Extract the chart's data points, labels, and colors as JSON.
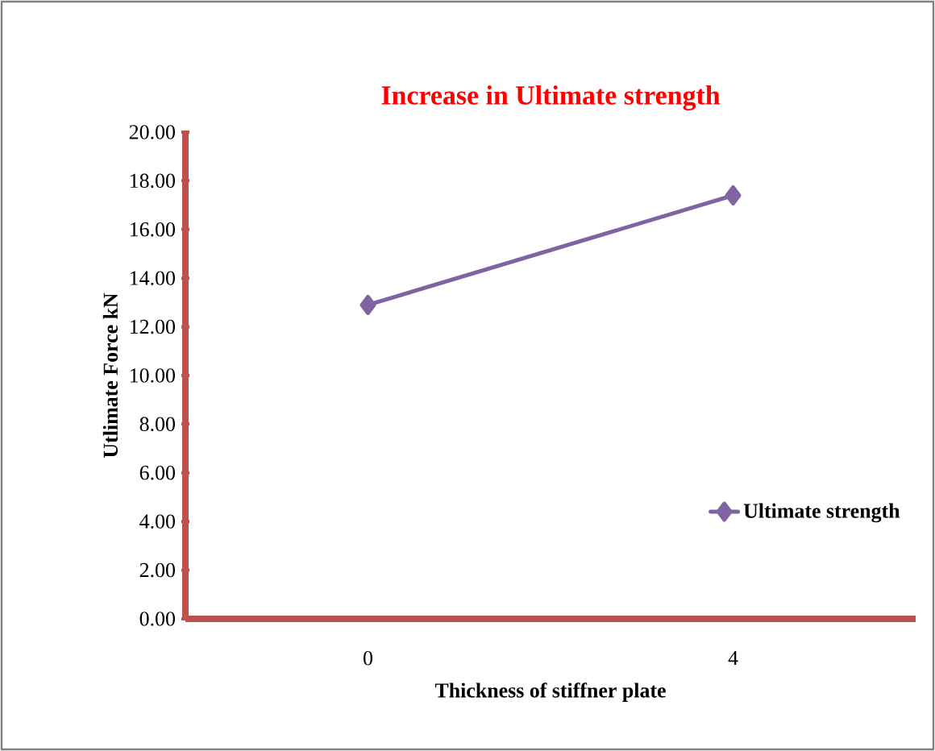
{
  "chart_data": {
    "type": "line",
    "title": "Increase in Ultimate strength",
    "xlabel": "Thickness of stiffner plate",
    "ylabel": "Utlimate Force kN",
    "categories": [
      "0",
      "4"
    ],
    "series": [
      {
        "name": "Ultimate strength",
        "color": "#8064a2",
        "values": [
          12.9,
          17.4
        ]
      }
    ],
    "ylim": [
      0,
      20
    ],
    "yticks": [
      {
        "value": 0,
        "label": "0.00"
      },
      {
        "value": 2,
        "label": "2.00"
      },
      {
        "value": 4,
        "label": "4.00"
      },
      {
        "value": 6,
        "label": "6.00"
      },
      {
        "value": 8,
        "label": "8.00"
      },
      {
        "value": 10,
        "label": "10.00"
      },
      {
        "value": 12,
        "label": "12.00"
      },
      {
        "value": 14,
        "label": "14.00"
      },
      {
        "value": 16,
        "label": "16.00"
      },
      {
        "value": 18,
        "label": "18.00"
      },
      {
        "value": 20,
        "label": "20.00"
      }
    ],
    "grid": false,
    "legend": "bottom right",
    "marker": "diamond",
    "line_style": "solid"
  }
}
